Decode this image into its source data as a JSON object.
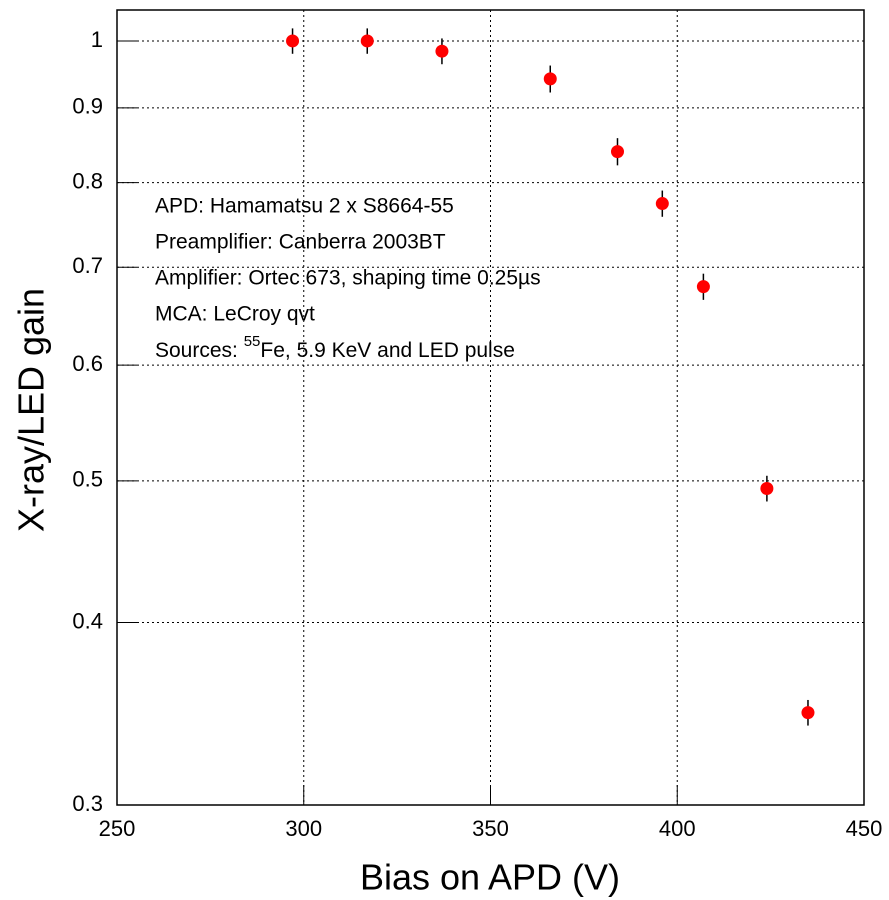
{
  "chart_data": {
    "type": "scatter",
    "x_label": "Bias on APD (V)",
    "y_label": "X-ray/LED gain",
    "x": [
      297,
      317,
      337,
      366,
      384,
      396,
      407,
      424,
      435
    ],
    "series": [
      {
        "color": "#ff0000",
        "values": [
          1.0,
          1.0,
          0.984,
          0.942,
          0.84,
          0.774,
          0.679,
          0.494,
          0.347
        ],
        "errors": [
          0.02,
          0.02,
          0.02,
          0.02,
          0.018,
          0.016,
          0.014,
          0.01,
          0.007
        ]
      }
    ],
    "xlim": [
      250,
      450
    ],
    "xticks": [
      250,
      300,
      350,
      400,
      450
    ],
    "ylim": [
      0.3,
      1.05
    ],
    "yticks": [
      0.3,
      0.4,
      0.5,
      0.6,
      0.7,
      0.8,
      0.9,
      1
    ],
    "y_log": true,
    "grid": true,
    "annotations": [
      "APD: Hamamatsu 2 x S8664-55",
      "Preamplifier: Canberra 2003BT",
      "Amplifier: Ortec 673, shaping time 0.25µs",
      "MCA: LeCroy qvt"
    ],
    "annotation_sources": {
      "prefix": "Sources: ",
      "superscript": "55",
      "suffix": "Fe, 5.9 KeV and LED pulse"
    }
  }
}
